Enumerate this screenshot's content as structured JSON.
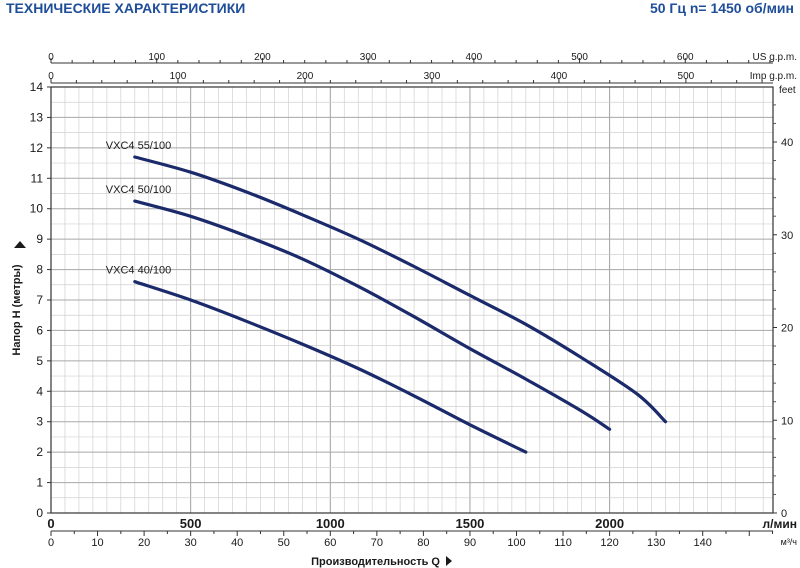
{
  "header": {
    "title": "ТЕХНИЧЕСКИЕ ХАРАКТЕРИСТИКИ",
    "speed": "50 Гц  n= 1450 об/мин"
  },
  "colors": {
    "curve": "#1b2a6b",
    "text": "#1a1a1a",
    "accent": "#1f4e99",
    "grid": "#b8b8b8"
  },
  "chart_data": {
    "type": "line",
    "grid": true,
    "axes": {
      "h_m": {
        "label": "Напор H (метры)",
        "ticks": [
          0,
          1,
          2,
          3,
          4,
          5,
          6,
          7,
          8,
          9,
          10,
          11,
          12,
          13,
          14
        ],
        "range": [
          0,
          14
        ]
      },
      "feet": {
        "label": "feet",
        "ticks": [
          0,
          10,
          20,
          30,
          40
        ],
        "range": [
          0,
          45.93
        ]
      },
      "l_min": {
        "label": "л/мин",
        "ticks": [
          0,
          500,
          1000,
          1500,
          2000
        ],
        "range": [
          0,
          2585
        ]
      },
      "m3_h": {
        "label": "м³/ч",
        "ticks": [
          0,
          10,
          20,
          30,
          40,
          50,
          60,
          70,
          80,
          90,
          100,
          110,
          120,
          130,
          140
        ],
        "range": [
          0,
          155.1
        ]
      },
      "us_gpm": {
        "label": "US g.p.m.",
        "ticks": [
          0,
          100,
          200,
          300,
          400,
          500,
          600
        ],
        "range": [
          0,
          683
        ]
      },
      "imp_gpm": {
        "label": "Imp g.p.m.",
        "ticks": [
          0,
          100,
          200,
          300,
          400,
          500
        ],
        "range": [
          0,
          568.6
        ]
      },
      "xlabel": "Производительность  Q"
    },
    "series": [
      {
        "name": "VXC4 55/100",
        "x_l_min": [
          300,
          500,
          700,
          900,
          1100,
          1300,
          1500,
          1700,
          1900,
          2100,
          2200
        ],
        "y_m": [
          11.7,
          11.2,
          10.55,
          9.8,
          9.0,
          8.1,
          7.15,
          6.2,
          5.1,
          3.9,
          3.0
        ]
      },
      {
        "name": "VXC4 50/100",
        "x_l_min": [
          300,
          500,
          700,
          900,
          1100,
          1300,
          1500,
          1700,
          1900,
          2000
        ],
        "y_m": [
          10.25,
          9.75,
          9.1,
          8.35,
          7.45,
          6.45,
          5.4,
          4.4,
          3.35,
          2.75
        ]
      },
      {
        "name": "VXC4 40/100",
        "x_l_min": [
          300,
          500,
          700,
          900,
          1100,
          1300,
          1500,
          1700
        ],
        "y_m": [
          7.6,
          7.0,
          6.3,
          5.55,
          4.75,
          3.85,
          2.9,
          2.0
        ]
      }
    ]
  }
}
